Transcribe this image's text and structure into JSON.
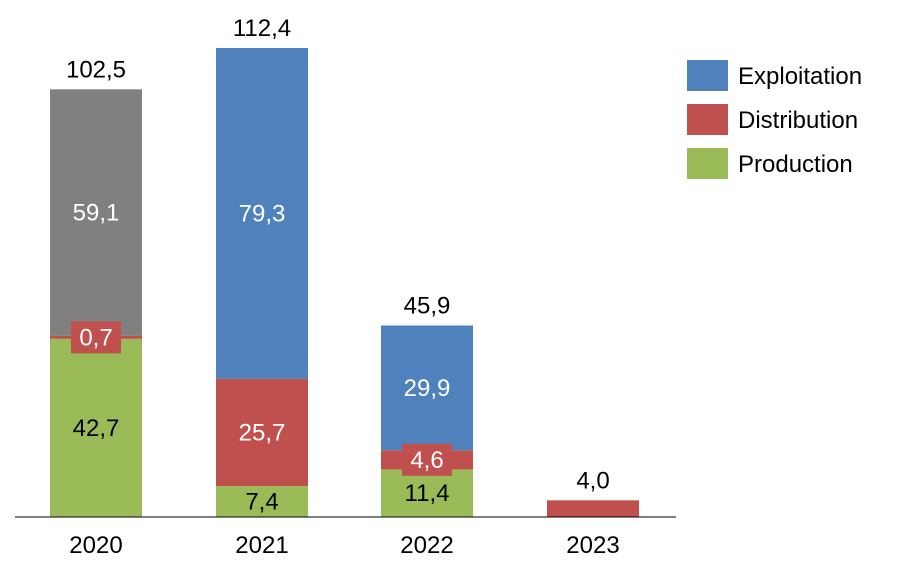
{
  "chart_data": {
    "type": "bar",
    "stacked": true,
    "categories": [
      "2020",
      "2021",
      "2022",
      "2023"
    ],
    "series": [
      {
        "name": "Production",
        "color": "#9BBB59",
        "values": [
          42.7,
          7.4,
          11.4,
          0
        ],
        "labels": [
          "42,7",
          "7,4",
          "11,4",
          ""
        ]
      },
      {
        "name": "Distribution",
        "color": "#C0504D",
        "values": [
          0.7,
          25.7,
          4.6,
          4.0
        ],
        "labels": [
          "0,7",
          "25,7",
          "4,6",
          ""
        ]
      },
      {
        "name": "Exploitation",
        "color": "#4F81BD",
        "values": [
          0,
          79.3,
          29.9,
          0
        ],
        "labels": [
          "",
          "79,3",
          "29,9",
          ""
        ]
      },
      {
        "color": "#808080",
        "values": [
          59.1,
          0,
          0,
          0
        ],
        "labels": [
          "59,1",
          "",
          "",
          ""
        ]
      }
    ],
    "totals": [
      "102,5",
      "112,4",
      "45,9",
      "4,0"
    ],
    "legend": {
      "position": "right",
      "entries": [
        {
          "name": "Exploitation",
          "color": "#4F81BD"
        },
        {
          "name": "Distribution",
          "color": "#C0504D"
        },
        {
          "name": "Production",
          "color": "#9BBB59"
        }
      ]
    },
    "ylim": [
      0,
      112.4
    ],
    "grid": false
  }
}
